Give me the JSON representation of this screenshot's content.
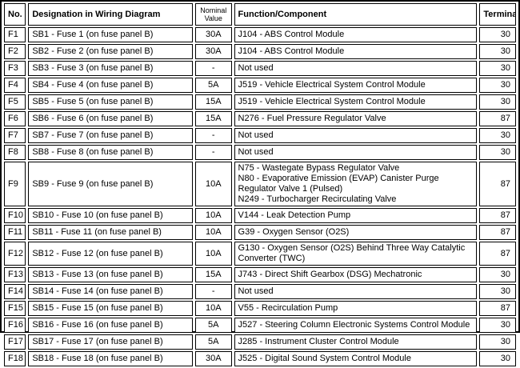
{
  "table": {
    "headers": {
      "no": "No.",
      "designation": "Designation in Wiring Diagram",
      "nominal": "Nominal Value",
      "function": "Function/Component",
      "terminal": "Terminal"
    },
    "rows": [
      {
        "no": "F1",
        "designation": "SB1 - Fuse 1 (on fuse panel B)",
        "nominal": "30A",
        "function": "J104 - ABS Control Module",
        "terminal": "30"
      },
      {
        "no": "F2",
        "designation": "SB2 - Fuse 2 (on fuse panel B)",
        "nominal": "30A",
        "function": "J104 - ABS Control Module",
        "terminal": "30"
      },
      {
        "no": "F3",
        "designation": "SB3 - Fuse 3 (on fuse panel B)",
        "nominal": "-",
        "function": "Not used",
        "terminal": "30"
      },
      {
        "no": "F4",
        "designation": "SB4 - Fuse 4 (on fuse panel B)",
        "nominal": "5A",
        "function": "J519 - Vehicle Electrical System Control Module",
        "terminal": "30"
      },
      {
        "no": "F5",
        "designation": "SB5 - Fuse 5 (on fuse panel B)",
        "nominal": "15A",
        "function": "J519 - Vehicle Electrical System Control Module",
        "terminal": "30"
      },
      {
        "no": "F6",
        "designation": "SB6 - Fuse 6 (on fuse panel B)",
        "nominal": "15A",
        "function": "N276 - Fuel Pressure Regulator Valve",
        "terminal": "87"
      },
      {
        "no": "F7",
        "designation": "SB7 - Fuse 7 (on fuse panel B)",
        "nominal": "-",
        "function": "Not used",
        "terminal": "30"
      },
      {
        "no": "F8",
        "designation": "SB8 - Fuse 8 (on fuse panel B)",
        "nominal": "-",
        "function": "Not used",
        "terminal": "30"
      },
      {
        "no": "F9",
        "designation": "SB9 - Fuse 9 (on fuse panel B)",
        "nominal": "10A",
        "function": "N75 - Wastegate Bypass Regulator Valve\nN80 - Evaporative Emission (EVAP) Canister Purge Regulator Valve 1 (Pulsed)\nN249 - Turbocharger Recirculating Valve",
        "terminal": "87"
      },
      {
        "no": "F10",
        "designation": "SB10 - Fuse 10 (on fuse panel B)",
        "nominal": "10A",
        "function": "V144 - Leak Detection Pump",
        "terminal": "87"
      },
      {
        "no": "F11",
        "designation": "SB11 - Fuse 11 (on fuse panel B)",
        "nominal": "10A",
        "function": "G39 - Oxygen Sensor (O2S)",
        "terminal": "87"
      },
      {
        "no": "F12",
        "designation": "SB12 - Fuse 12 (on fuse panel B)",
        "nominal": "10A",
        "function": "G130 - Oxygen Sensor (O2S) Behind Three Way Catalytic Converter (TWC)",
        "terminal": "87"
      },
      {
        "no": "F13",
        "designation": "SB13 - Fuse 13 (on fuse panel B)",
        "nominal": "15A",
        "function": "J743 - Direct Shift Gearbox (DSG) Mechatronic",
        "terminal": "30"
      },
      {
        "no": "F14",
        "designation": "SB14 - Fuse 14 (on fuse panel B)",
        "nominal": "-",
        "function": "Not used",
        "terminal": "30"
      },
      {
        "no": "F15",
        "designation": "SB15 - Fuse 15 (on fuse panel B)",
        "nominal": "10A",
        "function": "V55 - Recirculation Pump",
        "terminal": "87"
      },
      {
        "no": "F16",
        "designation": "SB16 - Fuse 16 (on fuse panel B)",
        "nominal": "5A",
        "function": "J527 - Steering Column Electronic Systems Control Module",
        "terminal": "30"
      },
      {
        "no": "F17",
        "designation": "SB17 - Fuse 17 (on fuse panel B)",
        "nominal": "5A",
        "function": "J285 - Instrument Cluster Control Module",
        "terminal": "30"
      },
      {
        "no": "F18",
        "designation": "SB18 - Fuse 18 (on fuse panel B)",
        "nominal": "30A",
        "function": "J525 - Digital Sound System Control Module",
        "terminal": "30"
      }
    ]
  }
}
